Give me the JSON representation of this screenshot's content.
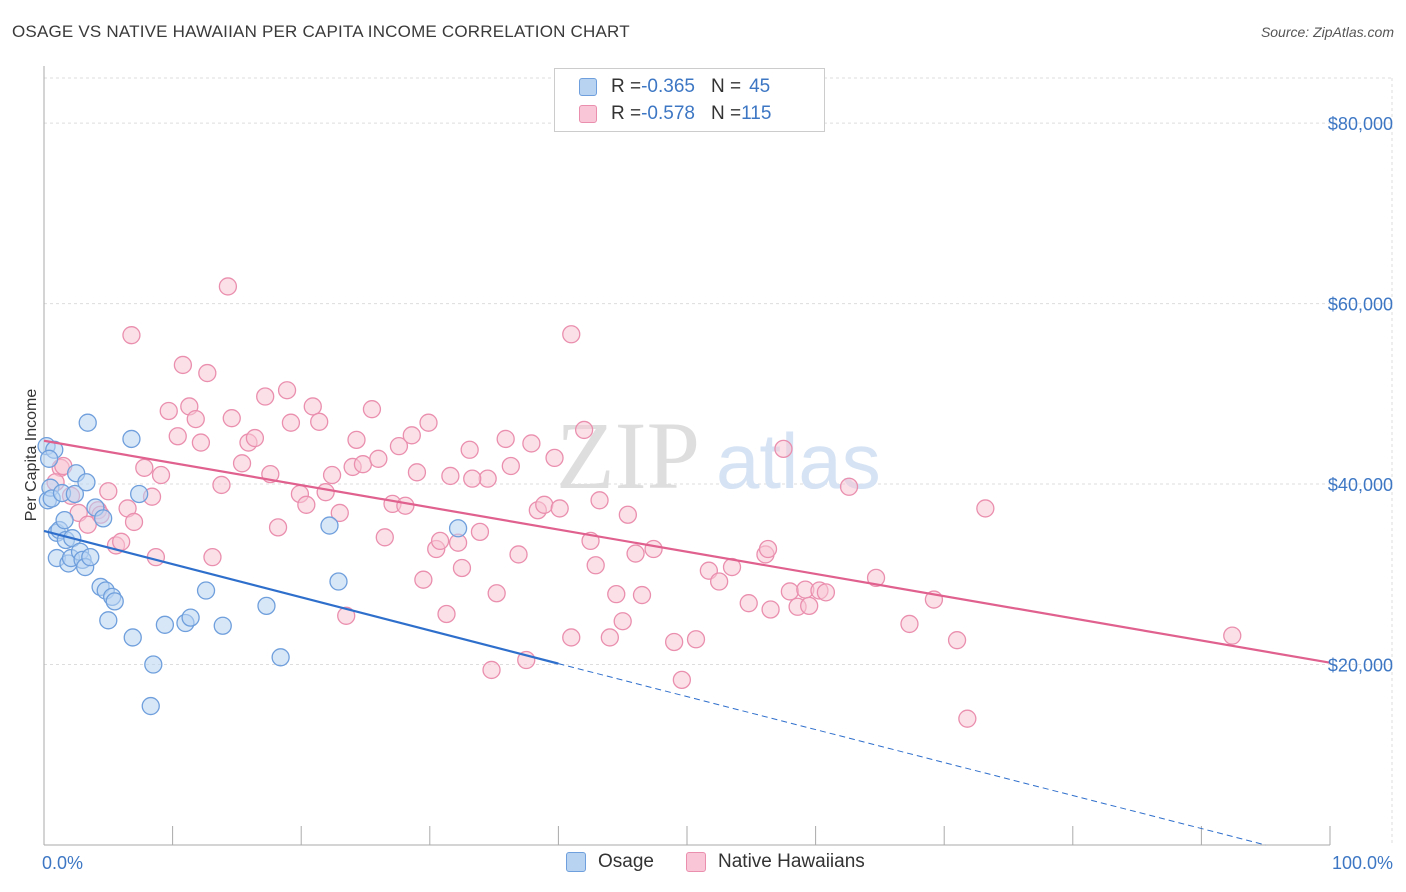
{
  "header": {
    "title": "OSAGE VS NATIVE HAWAIIAN PER CAPITA INCOME CORRELATION CHART",
    "source": "Source: ZipAtlas.com"
  },
  "colors": {
    "osage_fill": "#b8d3f2",
    "osage_stroke": "#6f9fdc",
    "osage_line": "#2f6fcc",
    "hawaiian_fill": "#f8c6d6",
    "hawaiian_stroke": "#ea8fae",
    "hawaiian_line": "#e0608e",
    "tick_label": "#3d77c4",
    "grid": "#dddddd"
  },
  "legend": {
    "rows": [
      {
        "r_label": "R = ",
        "r_value": "-0.365",
        "n_label": "N = ",
        "n_value": "45"
      },
      {
        "r_label": "R = ",
        "r_value": "-0.578",
        "n_label": "N = ",
        "n_value": "115"
      }
    ]
  },
  "bottom_legend": {
    "osage": "Osage",
    "hawaiian": "Native Hawaiians"
  },
  "watermark": {
    "zip": "ZIP",
    "atlas": "atlas"
  },
  "chart_data": {
    "type": "scatter",
    "title": "OSAGE VS NATIVE HAWAIIAN PER CAPITA INCOME CORRELATION CHART",
    "xlabel": "",
    "ylabel": "Per Capita Income",
    "xlim": [
      0,
      100
    ],
    "ylim": [
      0,
      85000
    ],
    "x_tick_labels": [
      "0.0%",
      "100.0%"
    ],
    "y_ticks": [
      20000,
      40000,
      60000,
      80000
    ],
    "y_tick_labels": [
      "$20,000",
      "$40,000",
      "$60,000",
      "$80,000"
    ],
    "grid": true,
    "legend_position": "top-center",
    "series": [
      {
        "name": "Osage",
        "r": -0.365,
        "n": 45,
        "trend": {
          "x0": 0,
          "y0": 34800,
          "x1": 40,
          "y1": 20100,
          "dashed_to_x": 95,
          "dashed_to_y": 0
        },
        "points": [
          [
            0.2,
            44200
          ],
          [
            0.3,
            38200
          ],
          [
            0.5,
            39600
          ],
          [
            0.6,
            38400
          ],
          [
            0.8,
            43800
          ],
          [
            1.0,
            31800
          ],
          [
            1.0,
            34600
          ],
          [
            1.2,
            34900
          ],
          [
            1.4,
            39000
          ],
          [
            1.6,
            36000
          ],
          [
            1.7,
            33800
          ],
          [
            1.9,
            31200
          ],
          [
            2.1,
            31800
          ],
          [
            2.2,
            34000
          ],
          [
            2.4,
            38900
          ],
          [
            2.5,
            41200
          ],
          [
            2.8,
            32500
          ],
          [
            3.0,
            31600
          ],
          [
            3.2,
            30800
          ],
          [
            3.3,
            40200
          ],
          [
            3.6,
            31900
          ],
          [
            3.4,
            46800
          ],
          [
            4.0,
            37400
          ],
          [
            4.4,
            28600
          ],
          [
            4.6,
            36200
          ],
          [
            4.8,
            28200
          ],
          [
            5.0,
            24900
          ],
          [
            5.3,
            27500
          ],
          [
            5.5,
            27000
          ],
          [
            6.9,
            23000
          ],
          [
            6.8,
            45000
          ],
          [
            7.4,
            38900
          ],
          [
            8.5,
            20000
          ],
          [
            8.3,
            15400
          ],
          [
            9.4,
            24400
          ],
          [
            11.0,
            24600
          ],
          [
            11.4,
            25200
          ],
          [
            12.6,
            28200
          ],
          [
            13.9,
            24300
          ],
          [
            17.3,
            26500
          ],
          [
            18.4,
            20800
          ],
          [
            22.2,
            35400
          ],
          [
            22.9,
            29200
          ],
          [
            32.2,
            35100
          ],
          [
            0.4,
            42800
          ]
        ]
      },
      {
        "name": "Native Hawaiians",
        "r": -0.578,
        "n": 115,
        "trend": {
          "x0": 0,
          "y0": 44800,
          "x1": 100,
          "y1": 20200
        },
        "points": [
          [
            1.3,
            41800
          ],
          [
            1.5,
            42000
          ],
          [
            2.1,
            38700
          ],
          [
            2.7,
            36800
          ],
          [
            3.4,
            35500
          ],
          [
            4.2,
            37100
          ],
          [
            4.4,
            36600
          ],
          [
            5.0,
            39200
          ],
          [
            5.6,
            33200
          ],
          [
            6.0,
            33600
          ],
          [
            6.5,
            37300
          ],
          [
            7.0,
            35800
          ],
          [
            6.8,
            56500
          ],
          [
            7.8,
            41800
          ],
          [
            8.4,
            38600
          ],
          [
            8.7,
            31900
          ],
          [
            9.1,
            41000
          ],
          [
            9.7,
            48100
          ],
          [
            10.4,
            45300
          ],
          [
            10.8,
            53200
          ],
          [
            11.3,
            48600
          ],
          [
            11.8,
            47200
          ],
          [
            12.2,
            44600
          ],
          [
            12.7,
            52300
          ],
          [
            13.1,
            31900
          ],
          [
            13.8,
            39900
          ],
          [
            14.3,
            61900
          ],
          [
            14.6,
            47300
          ],
          [
            15.4,
            42300
          ],
          [
            15.9,
            44600
          ],
          [
            16.4,
            45100
          ],
          [
            17.2,
            49700
          ],
          [
            17.6,
            41100
          ],
          [
            18.2,
            35200
          ],
          [
            18.9,
            50400
          ],
          [
            19.2,
            46800
          ],
          [
            19.9,
            38900
          ],
          [
            20.4,
            37700
          ],
          [
            20.9,
            48600
          ],
          [
            21.4,
            46900
          ],
          [
            21.9,
            39100
          ],
          [
            22.4,
            41000
          ],
          [
            23.0,
            36800
          ],
          [
            23.5,
            25400
          ],
          [
            24.0,
            41900
          ],
          [
            24.3,
            44900
          ],
          [
            24.8,
            42200
          ],
          [
            25.5,
            48300
          ],
          [
            26.0,
            42800
          ],
          [
            26.5,
            34100
          ],
          [
            27.1,
            37800
          ],
          [
            27.6,
            44200
          ],
          [
            28.1,
            37600
          ],
          [
            28.6,
            45400
          ],
          [
            29.0,
            41300
          ],
          [
            29.5,
            29400
          ],
          [
            29.9,
            46800
          ],
          [
            30.5,
            32800
          ],
          [
            30.8,
            33700
          ],
          [
            31.3,
            25600
          ],
          [
            31.6,
            40900
          ],
          [
            32.2,
            33500
          ],
          [
            32.5,
            30700
          ],
          [
            33.1,
            43800
          ],
          [
            33.9,
            34700
          ],
          [
            34.5,
            40600
          ],
          [
            34.8,
            19400
          ],
          [
            35.2,
            27900
          ],
          [
            35.9,
            45000
          ],
          [
            36.3,
            42000
          ],
          [
            36.9,
            32200
          ],
          [
            37.5,
            20500
          ],
          [
            37.9,
            44500
          ],
          [
            38.4,
            37100
          ],
          [
            38.9,
            37700
          ],
          [
            39.7,
            42900
          ],
          [
            41.0,
            56600
          ],
          [
            41.0,
            23000
          ],
          [
            42.0,
            46000
          ],
          [
            42.5,
            33700
          ],
          [
            42.9,
            31000
          ],
          [
            43.2,
            38200
          ],
          [
            44.0,
            23000
          ],
          [
            44.5,
            27800
          ],
          [
            45.0,
            24800
          ],
          [
            45.4,
            36600
          ],
          [
            46.0,
            32300
          ],
          [
            46.5,
            27700
          ],
          [
            47.4,
            32800
          ],
          [
            49.0,
            22500
          ],
          [
            49.6,
            18300
          ],
          [
            50.7,
            22800
          ],
          [
            51.7,
            30400
          ],
          [
            52.5,
            29200
          ],
          [
            53.5,
            30800
          ],
          [
            54.8,
            26800
          ],
          [
            56.1,
            32200
          ],
          [
            56.3,
            32800
          ],
          [
            56.5,
            26100
          ],
          [
            58.0,
            28100
          ],
          [
            59.2,
            28300
          ],
          [
            58.6,
            26400
          ],
          [
            59.5,
            26500
          ],
          [
            60.3,
            28200
          ],
          [
            62.6,
            39700
          ],
          [
            64.7,
            29600
          ],
          [
            67.3,
            24500
          ],
          [
            69.2,
            27200
          ],
          [
            71.0,
            22700
          ],
          [
            73.2,
            37300
          ],
          [
            71.8,
            14000
          ],
          [
            57.5,
            43900
          ],
          [
            92.4,
            23200
          ],
          [
            60.8,
            28000
          ],
          [
            0.9,
            40200
          ],
          [
            33.3,
            40600
          ],
          [
            40.1,
            37300
          ]
        ]
      }
    ]
  }
}
